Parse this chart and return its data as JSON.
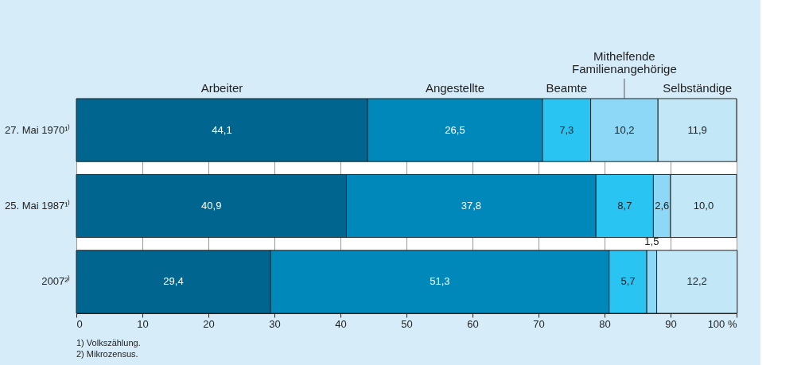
{
  "chart_data": {
    "type": "bar",
    "orientation": "horizontal",
    "stacked": true,
    "categories": [
      "27. Mai 1970¹⁾",
      "25. Mai 1987¹⁾",
      "2007²⁾"
    ],
    "series": [
      {
        "name": "Arbeiter",
        "color": "#00668f",
        "values": [
          44.1,
          40.9,
          29.4
        ],
        "value_labels": [
          "44,1",
          "40,9",
          "29,4"
        ]
      },
      {
        "name": "Angestellte",
        "color": "#0088bb",
        "values": [
          26.5,
          37.8,
          51.3
        ],
        "value_labels": [
          "26,5",
          "37,8",
          "51,3"
        ]
      },
      {
        "name": "Beamte",
        "color": "#2ac4f2",
        "values": [
          7.3,
          8.7,
          5.7
        ],
        "value_labels": [
          "7,3",
          "8,7",
          "5,7"
        ]
      },
      {
        "name": "Mithelfende Familienangehörige",
        "color": "#8dd8f6",
        "values": [
          10.2,
          2.6,
          1.5
        ],
        "value_labels": [
          "10,2",
          "2,6",
          "1,5"
        ]
      },
      {
        "name": "Selbständige",
        "color": "#c2e8f8",
        "values": [
          11.9,
          10.0,
          12.2
        ],
        "value_labels": [
          "11,9",
          "10,0",
          "12,2"
        ]
      }
    ],
    "xlim": [
      0,
      100
    ],
    "xticks": [
      0,
      10,
      20,
      30,
      40,
      50,
      60,
      70,
      80,
      90,
      {
        "value": 100,
        "label": "100 %"
      }
    ],
    "grid": "x",
    "legend": "top",
    "annotations": [
      "1) Volkszählung.",
      "2) Mikrozensus."
    ]
  }
}
